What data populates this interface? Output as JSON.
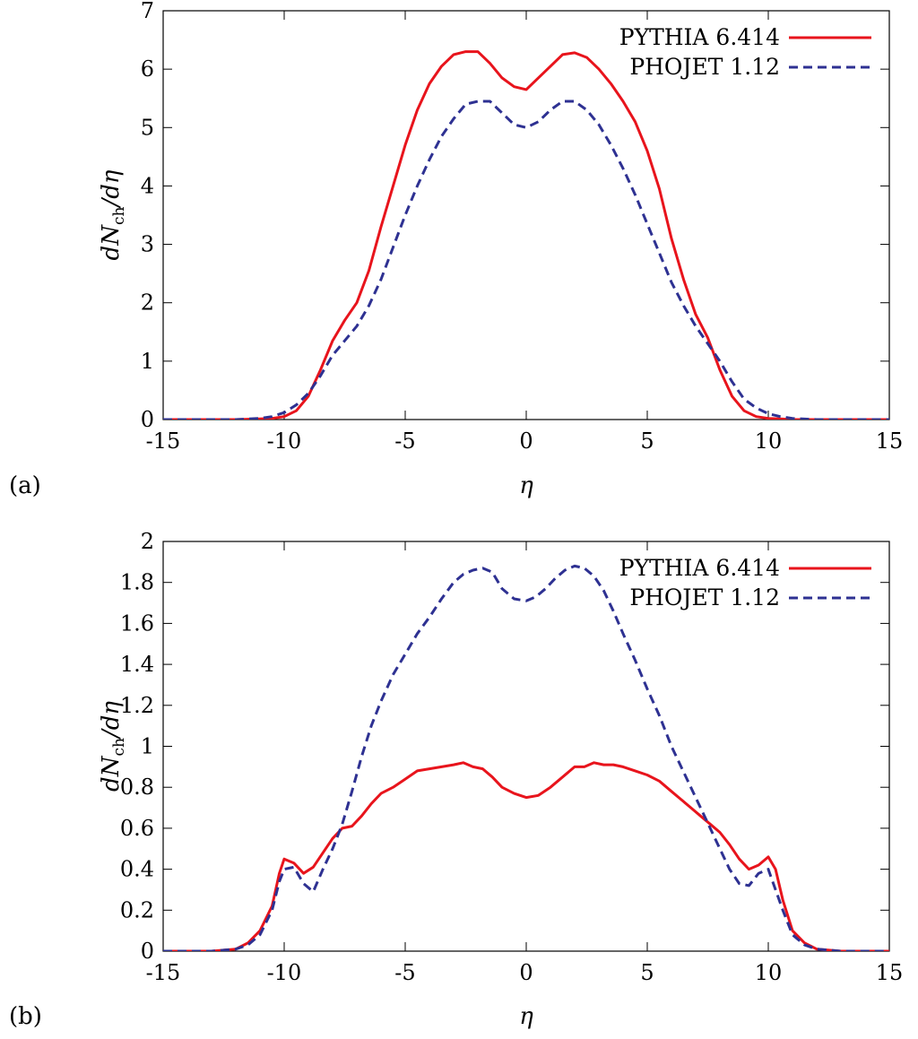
{
  "chart_data": [
    {
      "type": "line",
      "panel_label": "(a)",
      "xlabel": "η",
      "ylabel": "dN_ch/dη",
      "ylabel_main": "dN",
      "ylabel_sub": "ch",
      "ylabel_tail": "/dη",
      "xlim": [
        -15,
        15
      ],
      "ylim": [
        0,
        7
      ],
      "xticks": [
        -15,
        -10,
        -5,
        0,
        5,
        10,
        15
      ],
      "xtick_labels": [
        "-15",
        "-10",
        "-5",
        "0",
        "5",
        "10",
        "15"
      ],
      "yticks": [
        0,
        1,
        2,
        3,
        4,
        5,
        6,
        7
      ],
      "ytick_labels": [
        "0",
        "1",
        "2",
        "3",
        "4",
        "5",
        "6",
        "7"
      ],
      "legend_position": "top-right",
      "grid": false,
      "series": [
        {
          "name": "PYTHIA 6.414",
          "color": "#e8141c",
          "style": "solid",
          "x": [
            -15,
            -13,
            -12,
            -11,
            -10.5,
            -10,
            -9.5,
            -9,
            -8.5,
            -8,
            -7.5,
            -7,
            -6.5,
            -6,
            -5.5,
            -5,
            -4.5,
            -4,
            -3.5,
            -3,
            -2.5,
            -2,
            -1.5,
            -1,
            -0.5,
            0,
            0.5,
            1,
            1.5,
            2,
            2.5,
            3,
            3.5,
            4,
            4.5,
            5,
            5.5,
            6,
            6.5,
            7,
            7.5,
            8,
            8.5,
            9,
            9.5,
            10,
            10.5,
            11,
            12,
            13,
            15
          ],
          "y": [
            0,
            0,
            0,
            0.01,
            0.02,
            0.05,
            0.15,
            0.4,
            0.85,
            1.35,
            1.7,
            2.0,
            2.55,
            3.3,
            4.0,
            4.7,
            5.3,
            5.75,
            6.05,
            6.25,
            6.3,
            6.3,
            6.1,
            5.85,
            5.7,
            5.65,
            5.85,
            6.05,
            6.25,
            6.28,
            6.2,
            6.0,
            5.75,
            5.45,
            5.1,
            4.6,
            3.95,
            3.1,
            2.4,
            1.8,
            1.4,
            0.85,
            0.4,
            0.15,
            0.05,
            0.02,
            0.01,
            0,
            0,
            0,
            0
          ]
        },
        {
          "name": "PHOJET 1.12",
          "color": "#2e3192",
          "style": "dashed",
          "x": [
            -15,
            -13,
            -12,
            -11,
            -10.5,
            -10,
            -9.5,
            -9,
            -8.5,
            -8,
            -7.5,
            -7,
            -6.5,
            -6,
            -5.5,
            -5,
            -4.5,
            -4,
            -3.5,
            -3,
            -2.5,
            -2,
            -1.5,
            -1,
            -0.5,
            0,
            0.5,
            1,
            1.5,
            2,
            2.5,
            3,
            3.5,
            4,
            4.5,
            5,
            5.5,
            6,
            6.5,
            7,
            7.5,
            8,
            8.5,
            9,
            9.5,
            10,
            10.5,
            11,
            12,
            13,
            15
          ],
          "y": [
            0,
            0,
            0,
            0.02,
            0.05,
            0.12,
            0.25,
            0.45,
            0.75,
            1.1,
            1.35,
            1.6,
            1.95,
            2.4,
            2.95,
            3.5,
            4.0,
            4.45,
            4.85,
            5.15,
            5.4,
            5.45,
            5.45,
            5.25,
            5.05,
            5.0,
            5.1,
            5.3,
            5.45,
            5.45,
            5.3,
            5.05,
            4.7,
            4.3,
            3.85,
            3.35,
            2.85,
            2.35,
            1.95,
            1.6,
            1.3,
            1.0,
            0.65,
            0.35,
            0.2,
            0.1,
            0.05,
            0.02,
            0,
            0,
            0
          ]
        }
      ]
    },
    {
      "type": "line",
      "panel_label": "(b)",
      "xlabel": "η",
      "ylabel": "dN_ch/dη",
      "ylabel_main": "dN",
      "ylabel_sub": "ch",
      "ylabel_tail": "/dη",
      "xlim": [
        -15,
        15
      ],
      "ylim": [
        0,
        2
      ],
      "xticks": [
        -15,
        -10,
        -5,
        0,
        5,
        10,
        15
      ],
      "xtick_labels": [
        "-15",
        "-10",
        "-5",
        "0",
        "5",
        "10",
        "15"
      ],
      "yticks": [
        0,
        0.2,
        0.4,
        0.6,
        0.8,
        1,
        1.2,
        1.4,
        1.6,
        1.8,
        2
      ],
      "ytick_labels": [
        "0",
        "0.2",
        "0.4",
        "0.6",
        "0.8",
        "1",
        "1.2",
        "1.4",
        "1.6",
        "1.8",
        "2"
      ],
      "legend_position": "top-right",
      "grid": false,
      "series": [
        {
          "name": "PYTHIA 6.414",
          "color": "#e8141c",
          "style": "solid",
          "x": [
            -15,
            -13,
            -12.5,
            -12,
            -11.5,
            -11,
            -10.5,
            -10.2,
            -10,
            -9.6,
            -9.2,
            -8.8,
            -8.4,
            -8,
            -7.6,
            -7.2,
            -6.8,
            -6.4,
            -6,
            -5.5,
            -5,
            -4.5,
            -4,
            -3.5,
            -3,
            -2.6,
            -2.2,
            -1.8,
            -1.4,
            -1,
            -0.5,
            0,
            0.5,
            1,
            1.5,
            2,
            2.4,
            2.8,
            3.2,
            3.6,
            4,
            4.5,
            5,
            5.5,
            6,
            6.4,
            6.8,
            7.2,
            7.6,
            8,
            8.4,
            8.8,
            9.2,
            9.6,
            10,
            10.3,
            10.6,
            11,
            11.5,
            12,
            12.5,
            13,
            15
          ],
          "y": [
            0,
            0,
            0.005,
            0.01,
            0.04,
            0.1,
            0.22,
            0.38,
            0.45,
            0.43,
            0.38,
            0.41,
            0.48,
            0.55,
            0.6,
            0.61,
            0.66,
            0.72,
            0.77,
            0.8,
            0.84,
            0.88,
            0.89,
            0.9,
            0.91,
            0.92,
            0.9,
            0.89,
            0.85,
            0.8,
            0.77,
            0.75,
            0.76,
            0.8,
            0.85,
            0.9,
            0.9,
            0.92,
            0.91,
            0.91,
            0.9,
            0.88,
            0.86,
            0.83,
            0.78,
            0.74,
            0.7,
            0.66,
            0.62,
            0.58,
            0.52,
            0.45,
            0.4,
            0.42,
            0.46,
            0.4,
            0.25,
            0.1,
            0.04,
            0.01,
            0.005,
            0,
            0
          ]
        },
        {
          "name": "PHOJET 1.12",
          "color": "#2e3192",
          "style": "dashed",
          "x": [
            -15,
            -13,
            -12.5,
            -12,
            -11.5,
            -11,
            -10.5,
            -10.2,
            -10,
            -9.6,
            -9.2,
            -8.8,
            -8.4,
            -8,
            -7.6,
            -7.2,
            -6.8,
            -6.4,
            -6,
            -5.5,
            -5,
            -4.5,
            -4,
            -3.5,
            -3,
            -2.6,
            -2.2,
            -1.8,
            -1.4,
            -1,
            -0.5,
            0,
            0.4,
            0.8,
            1.2,
            1.6,
            2,
            2.4,
            2.8,
            3.2,
            3.6,
            4,
            4.5,
            5,
            5.5,
            6,
            6.4,
            6.8,
            7.2,
            7.6,
            8,
            8.4,
            8.8,
            9.2,
            9.6,
            10,
            10.3,
            10.6,
            11,
            11.5,
            12,
            12.5,
            13,
            15
          ],
          "y": [
            0,
            0,
            0.005,
            0.01,
            0.03,
            0.08,
            0.2,
            0.34,
            0.4,
            0.41,
            0.33,
            0.29,
            0.4,
            0.5,
            0.62,
            0.78,
            0.95,
            1.1,
            1.22,
            1.35,
            1.45,
            1.55,
            1.63,
            1.72,
            1.8,
            1.84,
            1.86,
            1.87,
            1.85,
            1.77,
            1.72,
            1.71,
            1.73,
            1.77,
            1.82,
            1.86,
            1.88,
            1.87,
            1.83,
            1.76,
            1.66,
            1.55,
            1.42,
            1.28,
            1.15,
            1.0,
            0.9,
            0.8,
            0.7,
            0.6,
            0.5,
            0.4,
            0.33,
            0.32,
            0.38,
            0.4,
            0.3,
            0.2,
            0.08,
            0.03,
            0.01,
            0.005,
            0,
            0
          ]
        }
      ]
    }
  ]
}
